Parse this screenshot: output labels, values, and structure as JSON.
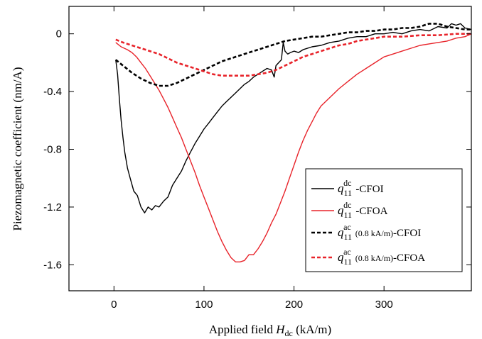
{
  "chart_data": {
    "type": "line",
    "xlabel_prefix": "Applied field ",
    "xlabel_var": "H",
    "xlabel_sub": "dc",
    "xlabel_unit": " (kA/m)",
    "ylabel": "Piezomagnetic coefficient (nm/A)",
    "xlim": [
      -50,
      397
    ],
    "ylim": [
      -1.78,
      0.19
    ],
    "x_ticks": [
      0,
      100,
      200,
      300
    ],
    "x_tick_labels": [
      "0",
      "100",
      "200",
      "300"
    ],
    "y_ticks": [
      0,
      -0.4,
      -0.8,
      -1.2,
      -1.6
    ],
    "y_tick_labels": [
      "0",
      "-0.4",
      "-0.8",
      "-1.2",
      "-1.6"
    ],
    "grid": false,
    "legend_position": "lower-right",
    "series": [
      {
        "var": "q",
        "sub": "11",
        "sup": "dc",
        "extra": "",
        "suffix": "-CFOI",
        "color": "#000000",
        "dash": "solid",
        "points": [
          [
            2,
            -0.18
          ],
          [
            4,
            -0.28
          ],
          [
            6,
            -0.45
          ],
          [
            8,
            -0.6
          ],
          [
            10,
            -0.72
          ],
          [
            12,
            -0.82
          ],
          [
            15,
            -0.93
          ],
          [
            18,
            -1.0
          ],
          [
            22,
            -1.09
          ],
          [
            26,
            -1.12
          ],
          [
            30,
            -1.2
          ],
          [
            34,
            -1.24
          ],
          [
            38,
            -1.2
          ],
          [
            42,
            -1.22
          ],
          [
            46,
            -1.19
          ],
          [
            50,
            -1.2
          ],
          [
            55,
            -1.16
          ],
          [
            60,
            -1.13
          ],
          [
            65,
            -1.05
          ],
          [
            70,
            -1.0
          ],
          [
            75,
            -0.95
          ],
          [
            80,
            -0.88
          ],
          [
            85,
            -0.82
          ],
          [
            90,
            -0.76
          ],
          [
            95,
            -0.71
          ],
          [
            100,
            -0.66
          ],
          [
            105,
            -0.62
          ],
          [
            110,
            -0.58
          ],
          [
            115,
            -0.54
          ],
          [
            120,
            -0.5
          ],
          [
            125,
            -0.47
          ],
          [
            130,
            -0.44
          ],
          [
            135,
            -0.41
          ],
          [
            140,
            -0.38
          ],
          [
            145,
            -0.35
          ],
          [
            150,
            -0.33
          ],
          [
            155,
            -0.3
          ],
          [
            160,
            -0.28
          ],
          [
            165,
            -0.26
          ],
          [
            170,
            -0.24
          ],
          [
            175,
            -0.25
          ],
          [
            178,
            -0.3
          ],
          [
            180,
            -0.22
          ],
          [
            183,
            -0.2
          ],
          [
            186,
            -0.18
          ],
          [
            188,
            -0.06
          ],
          [
            190,
            -0.12
          ],
          [
            193,
            -0.14
          ],
          [
            196,
            -0.13
          ],
          [
            200,
            -0.12
          ],
          [
            205,
            -0.13
          ],
          [
            210,
            -0.11
          ],
          [
            220,
            -0.09
          ],
          [
            230,
            -0.08
          ],
          [
            240,
            -0.06
          ],
          [
            250,
            -0.05
          ],
          [
            260,
            -0.03
          ],
          [
            270,
            -0.02
          ],
          [
            280,
            -0.02
          ],
          [
            290,
            0.0
          ],
          [
            300,
            0.0
          ],
          [
            310,
            0.01
          ],
          [
            320,
            0.0
          ],
          [
            330,
            0.02
          ],
          [
            340,
            0.03
          ],
          [
            350,
            0.02
          ],
          [
            360,
            0.05
          ],
          [
            370,
            0.04
          ],
          [
            375,
            0.07
          ],
          [
            380,
            0.06
          ],
          [
            385,
            0.07
          ],
          [
            390,
            0.04
          ],
          [
            397,
            0.03
          ]
        ]
      },
      {
        "var": "q",
        "sub": "11",
        "sup": "dc",
        "extra": "",
        "suffix": "-CFOA",
        "color": "#e8232a",
        "dash": "solid",
        "points": [
          [
            2,
            -0.06
          ],
          [
            8,
            -0.09
          ],
          [
            15,
            -0.11
          ],
          [
            20,
            -0.13
          ],
          [
            25,
            -0.16
          ],
          [
            30,
            -0.2
          ],
          [
            35,
            -0.24
          ],
          [
            40,
            -0.29
          ],
          [
            45,
            -0.34
          ],
          [
            50,
            -0.39
          ],
          [
            55,
            -0.45
          ],
          [
            60,
            -0.51
          ],
          [
            65,
            -0.58
          ],
          [
            70,
            -0.65
          ],
          [
            75,
            -0.72
          ],
          [
            80,
            -0.8
          ],
          [
            85,
            -0.88
          ],
          [
            90,
            -0.96
          ],
          [
            95,
            -1.05
          ],
          [
            100,
            -1.13
          ],
          [
            105,
            -1.21
          ],
          [
            110,
            -1.29
          ],
          [
            115,
            -1.37
          ],
          [
            120,
            -1.44
          ],
          [
            125,
            -1.5
          ],
          [
            130,
            -1.55
          ],
          [
            135,
            -1.58
          ],
          [
            140,
            -1.58
          ],
          [
            145,
            -1.57
          ],
          [
            150,
            -1.53
          ],
          [
            155,
            -1.53
          ],
          [
            160,
            -1.49
          ],
          [
            165,
            -1.44
          ],
          [
            170,
            -1.38
          ],
          [
            175,
            -1.31
          ],
          [
            180,
            -1.25
          ],
          [
            185,
            -1.17
          ],
          [
            190,
            -1.09
          ],
          [
            195,
            -1.0
          ],
          [
            200,
            -0.91
          ],
          [
            205,
            -0.82
          ],
          [
            210,
            -0.74
          ],
          [
            215,
            -0.67
          ],
          [
            220,
            -0.61
          ],
          [
            225,
            -0.55
          ],
          [
            230,
            -0.5
          ],
          [
            240,
            -0.44
          ],
          [
            250,
            -0.38
          ],
          [
            260,
            -0.33
          ],
          [
            270,
            -0.28
          ],
          [
            280,
            -0.24
          ],
          [
            290,
            -0.2
          ],
          [
            300,
            -0.16
          ],
          [
            310,
            -0.14
          ],
          [
            320,
            -0.12
          ],
          [
            330,
            -0.1
          ],
          [
            340,
            -0.08
          ],
          [
            350,
            -0.07
          ],
          [
            360,
            -0.06
          ],
          [
            370,
            -0.05
          ],
          [
            380,
            -0.03
          ],
          [
            390,
            -0.02
          ],
          [
            397,
            0.0
          ]
        ]
      },
      {
        "var": "q",
        "sub": "11",
        "sup": "ac",
        "extra": "(0.8 kA/m)",
        "suffix": "-CFOI",
        "color": "#000000",
        "dash": "dashed",
        "points": [
          [
            2,
            -0.18
          ],
          [
            10,
            -0.22
          ],
          [
            20,
            -0.27
          ],
          [
            30,
            -0.31
          ],
          [
            40,
            -0.34
          ],
          [
            50,
            -0.36
          ],
          [
            60,
            -0.36
          ],
          [
            70,
            -0.34
          ],
          [
            80,
            -0.31
          ],
          [
            90,
            -0.28
          ],
          [
            100,
            -0.25
          ],
          [
            110,
            -0.22
          ],
          [
            120,
            -0.19
          ],
          [
            130,
            -0.17
          ],
          [
            140,
            -0.15
          ],
          [
            150,
            -0.13
          ],
          [
            160,
            -0.11
          ],
          [
            170,
            -0.09
          ],
          [
            180,
            -0.07
          ],
          [
            190,
            -0.05
          ],
          [
            200,
            -0.04
          ],
          [
            210,
            -0.03
          ],
          [
            220,
            -0.02
          ],
          [
            230,
            -0.02
          ],
          [
            240,
            -0.01
          ],
          [
            250,
            0.0
          ],
          [
            260,
            0.01
          ],
          [
            270,
            0.01
          ],
          [
            280,
            0.02
          ],
          [
            290,
            0.02
          ],
          [
            300,
            0.03
          ],
          [
            310,
            0.03
          ],
          [
            320,
            0.04
          ],
          [
            330,
            0.04
          ],
          [
            340,
            0.05
          ],
          [
            350,
            0.07
          ],
          [
            360,
            0.07
          ],
          [
            370,
            0.05
          ],
          [
            380,
            0.04
          ],
          [
            390,
            0.03
          ],
          [
            397,
            0.03
          ]
        ]
      },
      {
        "var": "q",
        "sub": "11",
        "sup": "ac",
        "extra": "(0.8 kA/m)",
        "suffix": "-CFOA",
        "color": "#e8232a",
        "dash": "dashed",
        "points": [
          [
            2,
            -0.04
          ],
          [
            10,
            -0.06
          ],
          [
            20,
            -0.08
          ],
          [
            30,
            -0.1
          ],
          [
            40,
            -0.12
          ],
          [
            50,
            -0.14
          ],
          [
            60,
            -0.17
          ],
          [
            70,
            -0.2
          ],
          [
            80,
            -0.22
          ],
          [
            90,
            -0.24
          ],
          [
            100,
            -0.26
          ],
          [
            110,
            -0.28
          ],
          [
            120,
            -0.29
          ],
          [
            130,
            -0.29
          ],
          [
            140,
            -0.29
          ],
          [
            150,
            -0.29
          ],
          [
            160,
            -0.28
          ],
          [
            170,
            -0.27
          ],
          [
            180,
            -0.25
          ],
          [
            190,
            -0.22
          ],
          [
            200,
            -0.19
          ],
          [
            210,
            -0.16
          ],
          [
            220,
            -0.14
          ],
          [
            230,
            -0.12
          ],
          [
            240,
            -0.1
          ],
          [
            250,
            -0.08
          ],
          [
            260,
            -0.07
          ],
          [
            270,
            -0.05
          ],
          [
            280,
            -0.04
          ],
          [
            290,
            -0.03
          ],
          [
            300,
            -0.02
          ],
          [
            320,
            -0.02
          ],
          [
            340,
            -0.01
          ],
          [
            360,
            -0.01
          ],
          [
            380,
            0.0
          ],
          [
            397,
            0.0
          ]
        ]
      }
    ]
  }
}
